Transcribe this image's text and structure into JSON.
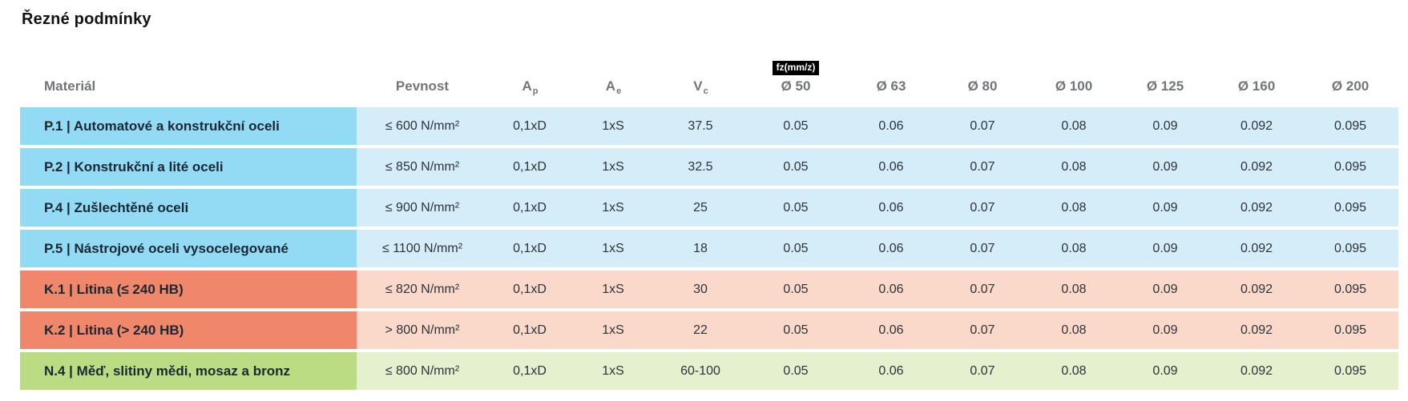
{
  "page": {
    "title": "Řezné podmínky"
  },
  "table": {
    "headers": {
      "material": "Materiál",
      "strength": "Pevnost",
      "ap": {
        "base": "A",
        "sub": "p"
      },
      "ae": {
        "base": "A",
        "sub": "e"
      },
      "vc": {
        "base": "V",
        "sub": "c"
      },
      "fz_badge": "fz(mm/z)",
      "diameters": [
        "Ø 50",
        "Ø 63",
        "Ø 80",
        "Ø 100",
        "Ø 125",
        "Ø 160",
        "Ø 200"
      ]
    },
    "rows": [
      {
        "group": "steel",
        "material": "P.1 | Automatové a konstrukční oceli",
        "strength": "≤ 600 N/mm²",
        "ap": "0,1xD",
        "ae": "1xS",
        "vc": "37.5",
        "fz": [
          "0.05",
          "0.06",
          "0.07",
          "0.08",
          "0.09",
          "0.092",
          "0.095"
        ]
      },
      {
        "group": "steel",
        "material": "P.2 | Konstrukční a lité oceli",
        "strength": "≤ 850 N/mm²",
        "ap": "0,1xD",
        "ae": "1xS",
        "vc": "32.5",
        "fz": [
          "0.05",
          "0.06",
          "0.07",
          "0.08",
          "0.09",
          "0.092",
          "0.095"
        ]
      },
      {
        "group": "steel",
        "material": "P.4 | Zušlechtěné oceli",
        "strength": "≤ 900 N/mm²",
        "ap": "0,1xD",
        "ae": "1xS",
        "vc": "25",
        "fz": [
          "0.05",
          "0.06",
          "0.07",
          "0.08",
          "0.09",
          "0.092",
          "0.095"
        ]
      },
      {
        "group": "steel",
        "material": "P.5 | Nástrojové oceli vysocelegované",
        "strength": "≤ 1100 N/mm²",
        "ap": "0,1xD",
        "ae": "1xS",
        "vc": "18",
        "fz": [
          "0.05",
          "0.06",
          "0.07",
          "0.08",
          "0.09",
          "0.092",
          "0.095"
        ]
      },
      {
        "group": "cast_iron",
        "material": "K.1 | Litina (≤ 240 HB)",
        "strength": "≤ 820 N/mm²",
        "ap": "0,1xD",
        "ae": "1xS",
        "vc": "30",
        "fz": [
          "0.05",
          "0.06",
          "0.07",
          "0.08",
          "0.09",
          "0.092",
          "0.095"
        ]
      },
      {
        "group": "cast_iron",
        "material": "K.2 | Litina (> 240 HB)",
        "strength": "> 800 N/mm²",
        "ap": "0,1xD",
        "ae": "1xS",
        "vc": "22",
        "fz": [
          "0.05",
          "0.06",
          "0.07",
          "0.08",
          "0.09",
          "0.092",
          "0.095"
        ]
      },
      {
        "group": "non_ferrous",
        "material": "N.4 | Měď, slitiny mědi, mosaz a bronz",
        "strength": "≤ 800 N/mm²",
        "ap": "0,1xD",
        "ae": "1xS",
        "vc": "60-100",
        "fz": [
          "0.05",
          "0.06",
          "0.07",
          "0.08",
          "0.09",
          "0.092",
          "0.095"
        ]
      }
    ],
    "colors": {
      "steel_material": "#93DAF4",
      "steel_values": "#D5EDF9",
      "cast_iron_material": "#F0876B",
      "cast_iron_values": "#FAD9CA",
      "non_ferrous_material": "#BCDC83",
      "non_ferrous_values": "#E5F0CE"
    }
  }
}
